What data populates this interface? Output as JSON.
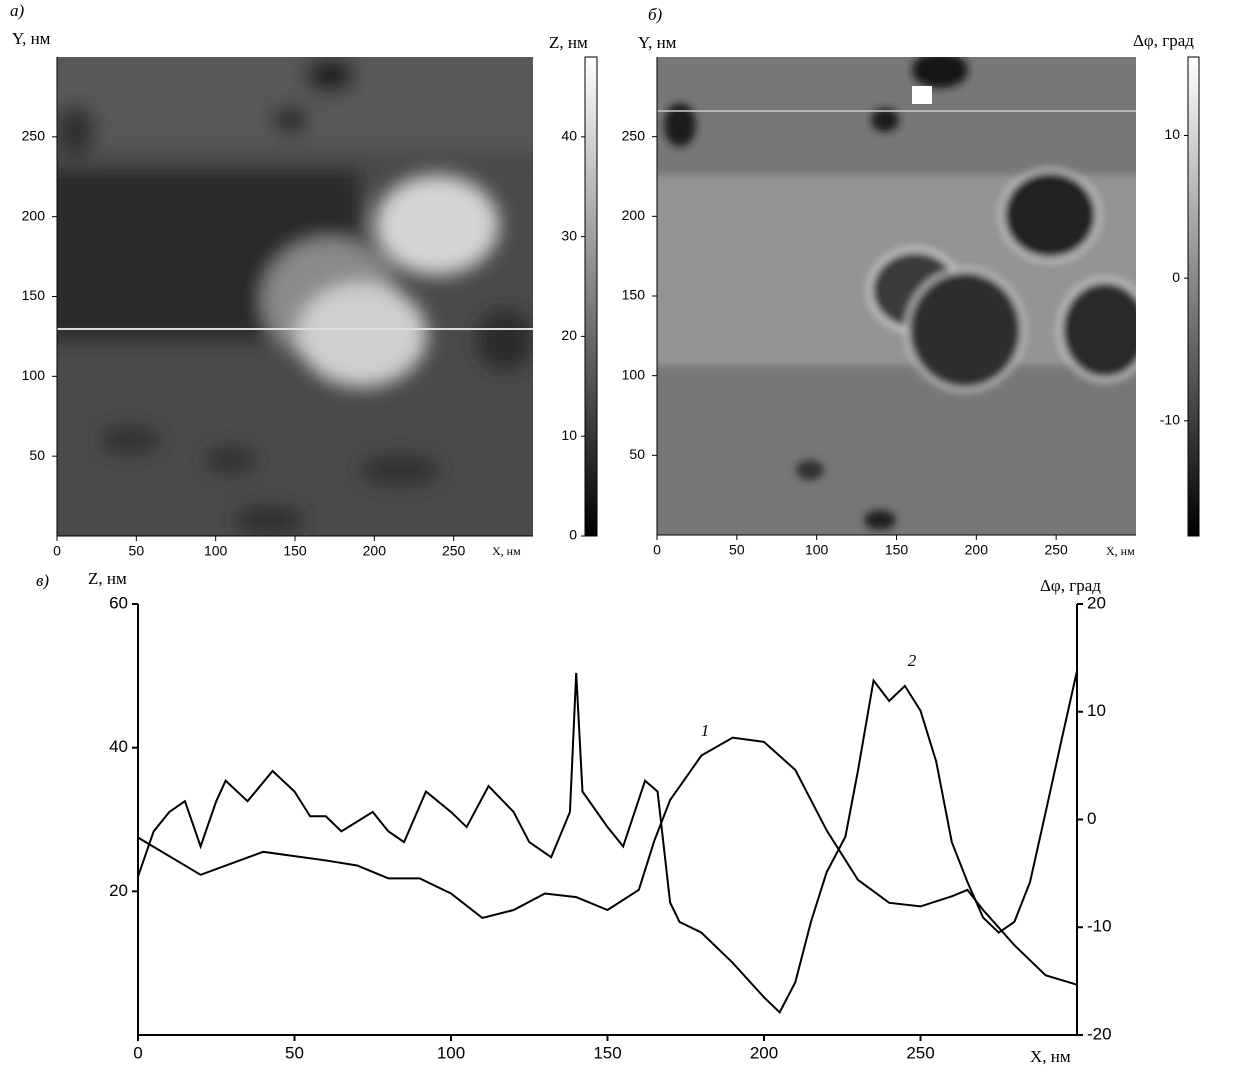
{
  "chart_data": [
    {
      "type": "image",
      "panel": "а)",
      "xlabel": "X, нм",
      "ylabel": "Y, нм",
      "colorbar_label": "Z, нм",
      "xlim": [
        0,
        300
      ],
      "xticks": [
        0,
        50,
        100,
        150,
        200,
        250
      ],
      "ylim": [
        0,
        300
      ],
      "yticks": [
        50,
        100,
        150,
        200,
        250
      ],
      "clim": [
        0,
        48
      ],
      "cticks": [
        0,
        10,
        20,
        30,
        40
      ]
    },
    {
      "type": "image",
      "panel": "б)",
      "xlabel": "X, нм",
      "ylabel": "Y, нм",
      "colorbar_label": "Δφ, град",
      "xlim": [
        0,
        300
      ],
      "xticks": [
        0,
        50,
        100,
        150,
        200,
        250
      ],
      "ylim": [
        0,
        300
      ],
      "yticks": [
        50,
        100,
        150,
        200,
        250
      ],
      "clim": [
        -18,
        15.5
      ],
      "cticks": [
        -10,
        0,
        10
      ]
    },
    {
      "type": "line",
      "panel": "в)",
      "xlabel": "X, нм",
      "ylabel": "Z, нм",
      "y2label": "Δφ, град",
      "xlim": [
        0,
        300
      ],
      "xticks": [
        0,
        50,
        100,
        150,
        200,
        250
      ],
      "ylim": [
        0,
        60
      ],
      "yticks": [
        20,
        40,
        60
      ],
      "y2lim": [
        -20,
        20
      ],
      "y2ticks": [
        -20,
        -10,
        0,
        10,
        20
      ],
      "series": [
        {
          "name": "1",
          "color": "#000000",
          "x": [
            0,
            20,
            40,
            60,
            70,
            80,
            90,
            100,
            110,
            120,
            130,
            140,
            150,
            160,
            165,
            170,
            180,
            190,
            200,
            210,
            220,
            230,
            240,
            250,
            260,
            265,
            270,
            280,
            290,
            300
          ],
          "values": [
            27.5,
            22.3,
            25.5,
            24.3,
            23.6,
            21.8,
            21.8,
            19.7,
            16.3,
            17.4,
            19.7,
            19.2,
            17.4,
            20.2,
            27.1,
            32.7,
            38.9,
            41.4,
            40.8,
            36.9,
            28.5,
            21.6,
            18.4,
            17.9,
            19.3,
            20.2,
            17.4,
            12.5,
            8.3,
            7.0
          ]
        },
        {
          "name": "2",
          "color": "#000000",
          "axis": "y2",
          "x": [
            0,
            5,
            10,
            15,
            20,
            25,
            28,
            35,
            43,
            50,
            55,
            60,
            65,
            70,
            75,
            80,
            85,
            92,
            100,
            105,
            112,
            120,
            125,
            132,
            138,
            140,
            142,
            150,
            155,
            162,
            166,
            170,
            173,
            180,
            190,
            200,
            205,
            210,
            215,
            220,
            226,
            230,
            235,
            240,
            245,
            250,
            255,
            260,
            265,
            270,
            275,
            280,
            285,
            290,
            295,
            300
          ],
          "values": [
            -5.3,
            -1.1,
            0.7,
            1.7,
            -2.5,
            1.7,
            3.6,
            1.7,
            4.5,
            2.6,
            0.3,
            0.3,
            -1.1,
            -0.2,
            0.7,
            -1.1,
            -2.1,
            2.6,
            0.7,
            -0.7,
            3.1,
            0.7,
            -2.1,
            -3.5,
            0.7,
            13.6,
            2.6,
            -0.7,
            -2.5,
            3.6,
            2.6,
            -7.7,
            -9.5,
            -10.5,
            -13.3,
            -16.5,
            -17.9,
            -15.1,
            -9.5,
            -4.9,
            -1.6,
            4.5,
            12.9,
            11.0,
            12.4,
            10.1,
            5.4,
            -2.1,
            -5.8,
            -9.1,
            -10.5,
            -9.5,
            -5.8,
            0.7,
            7.3,
            13.8
          ]
        }
      ]
    }
  ]
}
